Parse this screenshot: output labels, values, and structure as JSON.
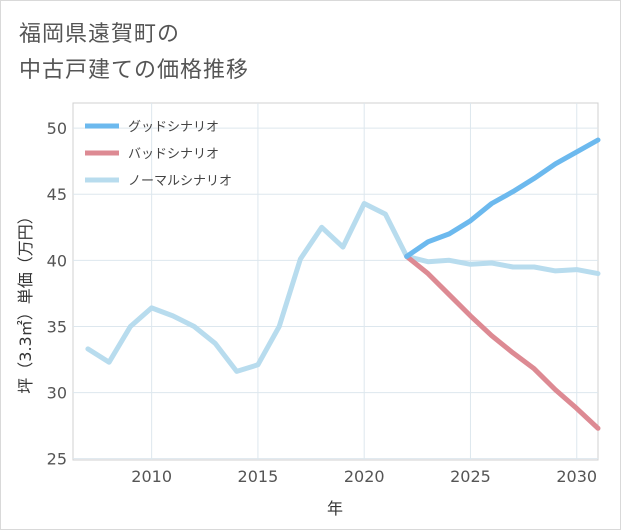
{
  "title_line1": "福岡県遠賀町の",
  "title_line2": "中古戸建ての価格推移",
  "chart_data": {
    "type": "line",
    "title": "福岡県遠賀町の中古戸建ての価格推移",
    "xlabel": "年",
    "ylabel": "坪（3.3㎡）単価（万円）",
    "xlim": [
      2006.3,
      2031
    ],
    "ylim": [
      24.9,
      51.9
    ],
    "x_ticks": [
      2010,
      2015,
      2020,
      2025,
      2030
    ],
    "y_ticks": [
      25,
      30,
      35,
      40,
      45,
      50
    ],
    "grid": true,
    "legend_position": "top-left",
    "series": [
      {
        "name": "グッドシナリオ",
        "color": "#6cb9ee",
        "x": [
          2022,
          2023,
          2024,
          2025,
          2026,
          2027,
          2028,
          2029,
          2030,
          2031
        ],
        "y": [
          40.3,
          41.4,
          42.0,
          43.0,
          44.3,
          45.2,
          46.2,
          47.3,
          48.2,
          49.1
        ]
      },
      {
        "name": "バッドシナリオ",
        "color": "#dd8a93",
        "x": [
          2022,
          2023,
          2024,
          2025,
          2026,
          2027,
          2028,
          2029,
          2030,
          2031
        ],
        "y": [
          40.3,
          39.0,
          37.4,
          35.8,
          34.3,
          33.0,
          31.8,
          30.2,
          28.8,
          27.3
        ]
      },
      {
        "name": "ノーマルシナリオ",
        "color": "#b8dcee",
        "x": [
          2007,
          2008,
          2009,
          2010,
          2011,
          2012,
          2013,
          2014,
          2015,
          2016,
          2017,
          2018,
          2019,
          2020,
          2021,
          2022,
          2023,
          2024,
          2025,
          2026,
          2027,
          2028,
          2029,
          2030,
          2031
        ],
        "y": [
          33.3,
          32.3,
          35.0,
          36.4,
          35.8,
          35.0,
          33.7,
          31.6,
          32.1,
          35.0,
          40.1,
          42.5,
          41.0,
          44.3,
          43.5,
          40.3,
          39.9,
          40.0,
          39.7,
          39.8,
          39.5,
          39.5,
          39.2,
          39.3,
          39.0
        ]
      }
    ]
  }
}
